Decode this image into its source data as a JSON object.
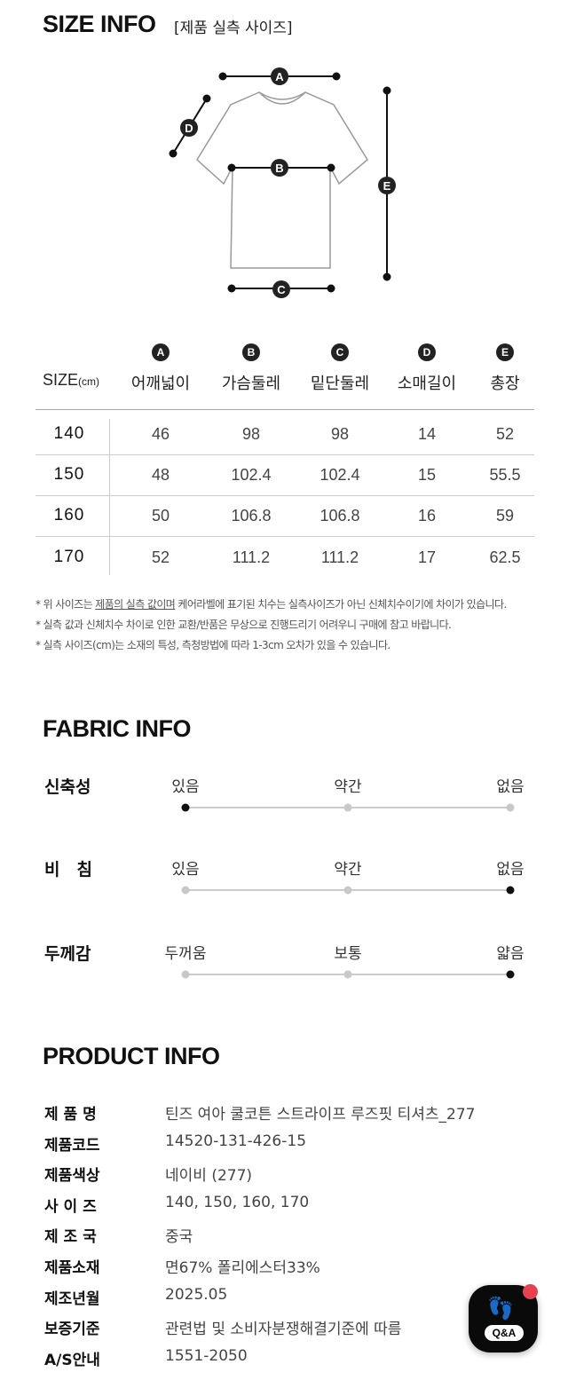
{
  "size_info": {
    "title": "SIZE INFO",
    "subtitle": "[제품 실측 사이즈]",
    "diagram_labels": [
      "A",
      "B",
      "C",
      "D",
      "E"
    ],
    "size_header": "SIZE",
    "size_unit": "(cm)",
    "columns": [
      {
        "letter": "A",
        "label": "어깨넓이"
      },
      {
        "letter": "B",
        "label": "가슴둘레"
      },
      {
        "letter": "C",
        "label": "밑단둘레"
      },
      {
        "letter": "D",
        "label": "소매길이"
      },
      {
        "letter": "E",
        "label": "총장"
      }
    ],
    "rows": [
      {
        "size": "140",
        "values": [
          "46",
          "98",
          "98",
          "14",
          "52"
        ]
      },
      {
        "size": "150",
        "values": [
          "48",
          "102.4",
          "102.4",
          "15",
          "55.5"
        ]
      },
      {
        "size": "160",
        "values": [
          "50",
          "106.8",
          "106.8",
          "16",
          "59"
        ]
      },
      {
        "size": "170",
        "values": [
          "52",
          "111.2",
          "111.2",
          "17",
          "62.5"
        ]
      }
    ],
    "notes": {
      "n1_pre": "* 위 사이즈는 ",
      "n1_u": "제품의 실측 값이며",
      "n1_post": " 케어라벨에 표기된 치수는 실측사이즈가 아닌 신체치수이기에 차이가 있습니다.",
      "n2": "* 실측 값과 신체치수 차이로 인한 교환/반품은 무상으로 진행드리기 어려우니 구매에 참고 바랍니다.",
      "n3": "* 실측 사이즈(cm)는 소재의 특성, 측청방법에 따라 1-3cm 오차가 있을 수 있습니다."
    }
  },
  "fabric_info": {
    "title": "FABRIC INFO",
    "rows": [
      {
        "label": "신축성",
        "options": [
          "있음",
          "약간",
          "없음"
        ],
        "selected": 0
      },
      {
        "label": "비　침",
        "options": [
          "있음",
          "약간",
          "없음"
        ],
        "selected": 2
      },
      {
        "label": "두께감",
        "options": [
          "두꺼움",
          "보통",
          "얇음"
        ],
        "selected": 2
      }
    ]
  },
  "product_info": {
    "title": "PRODUCT INFO",
    "rows": [
      {
        "label": "제 품 명",
        "value": "틴즈 여아 쿨코튼 스트라이프 루즈핏 티셔츠_277"
      },
      {
        "label": "제품코드",
        "value": "14520-131-426-15"
      },
      {
        "label": "제품색상",
        "value": "네이비 (277)"
      },
      {
        "label": "사 이 즈",
        "value": "140, 150, 160, 170"
      },
      {
        "label": "제 조 국",
        "value": "중국"
      },
      {
        "label": "제품소재",
        "value": "면67% 폴리에스터33%"
      },
      {
        "label": "제조년월",
        "value": "2025.05"
      },
      {
        "label": "보증기준",
        "value": "관련법 및 소비자분쟁해결기준에 따름"
      },
      {
        "label": "A/S안내",
        "value": "1551-2050"
      }
    ]
  },
  "qa_button": {
    "label": "Q&A",
    "icon": "footprints-icon",
    "badge_color": "#e8414f"
  }
}
